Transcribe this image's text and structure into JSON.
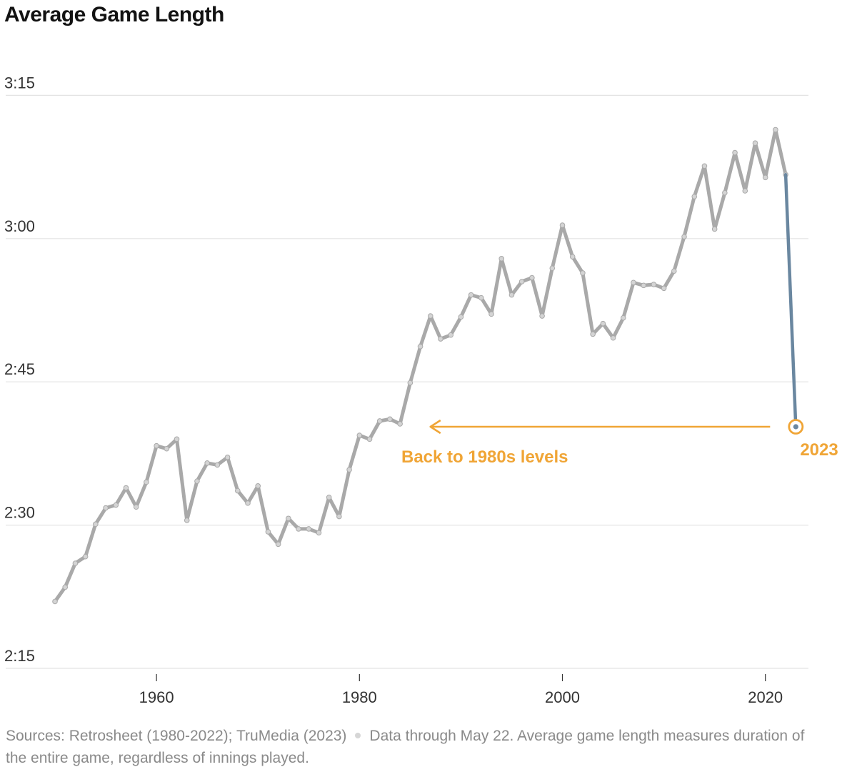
{
  "header": {
    "title": "Average Game Length"
  },
  "chart_data": {
    "type": "line",
    "title": "Average Game Length",
    "xlabel": "",
    "ylabel": "",
    "xlim": [
      1948,
      2025
    ],
    "ylim": [
      135,
      198
    ],
    "y_ticks": [
      {
        "value": 135,
        "label": "2:15"
      },
      {
        "value": 150,
        "label": "2:30"
      },
      {
        "value": 165,
        "label": "2:45"
      },
      {
        "value": 180,
        "label": "3:00"
      },
      {
        "value": 195,
        "label": "3:15"
      }
    ],
    "x_ticks": [
      {
        "value": 1960,
        "label": "1960"
      },
      {
        "value": 1980,
        "label": "1980"
      },
      {
        "value": 2000,
        "label": "2000"
      },
      {
        "value": 2020,
        "label": "2020"
      }
    ],
    "y_unit": "minutes",
    "grid": true,
    "series": [
      {
        "color": "#a9a9a9",
        "x": [
          1950,
          1951,
          1952,
          1953,
          1954,
          1955,
          1956,
          1957,
          1958,
          1959,
          1960,
          1961,
          1962,
          1963,
          1964,
          1965,
          1966,
          1967,
          1968,
          1969,
          1970,
          1971,
          1972,
          1973,
          1974,
          1975,
          1976,
          1977,
          1978,
          1979,
          1980,
          1981,
          1982,
          1983,
          1984,
          1985,
          1986,
          1987,
          1988,
          1989,
          1990,
          1991,
          1992,
          1993,
          1994,
          1995,
          1996,
          1997,
          1998,
          1999,
          2000,
          2001,
          2002,
          2003,
          2004,
          2005,
          2006,
          2007,
          2008,
          2009,
          2010,
          2011,
          2012,
          2013,
          2014,
          2015,
          2016,
          2017,
          2018,
          2019,
          2020,
          2021,
          2022
        ],
        "y": [
          142.0,
          143.5,
          146.0,
          146.7,
          150.1,
          151.8,
          152.1,
          153.9,
          151.9,
          154.5,
          158.3,
          158.0,
          159.0,
          150.5,
          154.6,
          156.5,
          156.3,
          157.1,
          153.6,
          152.3,
          154.1,
          149.3,
          148.0,
          150.7,
          149.6,
          149.6,
          149.2,
          152.9,
          150.9,
          155.8,
          159.4,
          159.0,
          160.9,
          161.1,
          160.6,
          164.9,
          168.7,
          171.9,
          169.5,
          169.9,
          171.8,
          174.1,
          173.8,
          172.1,
          177.9,
          174.1,
          175.5,
          175.9,
          171.9,
          176.9,
          181.4,
          178.1,
          176.4,
          170.0,
          171.1,
          169.6,
          171.7,
          175.4,
          175.1,
          175.2,
          174.8,
          176.6,
          180.2,
          184.4,
          187.6,
          181.0,
          184.8,
          189.0,
          185.0,
          190.0,
          186.4,
          191.4,
          186.7
        ]
      },
      {
        "color": "#6a87a0",
        "x": [
          2022,
          2023
        ],
        "y": [
          186.7,
          160.3
        ]
      }
    ],
    "highlight_point": {
      "x": 2023,
      "y": 160.3,
      "label": "2023",
      "color": "#f0a536"
    },
    "annotations": [
      {
        "text": "Back to 1980s levels",
        "color": "#f0a536",
        "arrow_from_x": 2023,
        "arrow_to_x": 1987,
        "y": 160.3
      }
    ]
  },
  "footer": {
    "sources": "Sources: Retrosheet (1980-2022); TruMedia (2023)",
    "note": "Data through May 22. Average game length measures duration of the entire game, regardless of innings played."
  }
}
